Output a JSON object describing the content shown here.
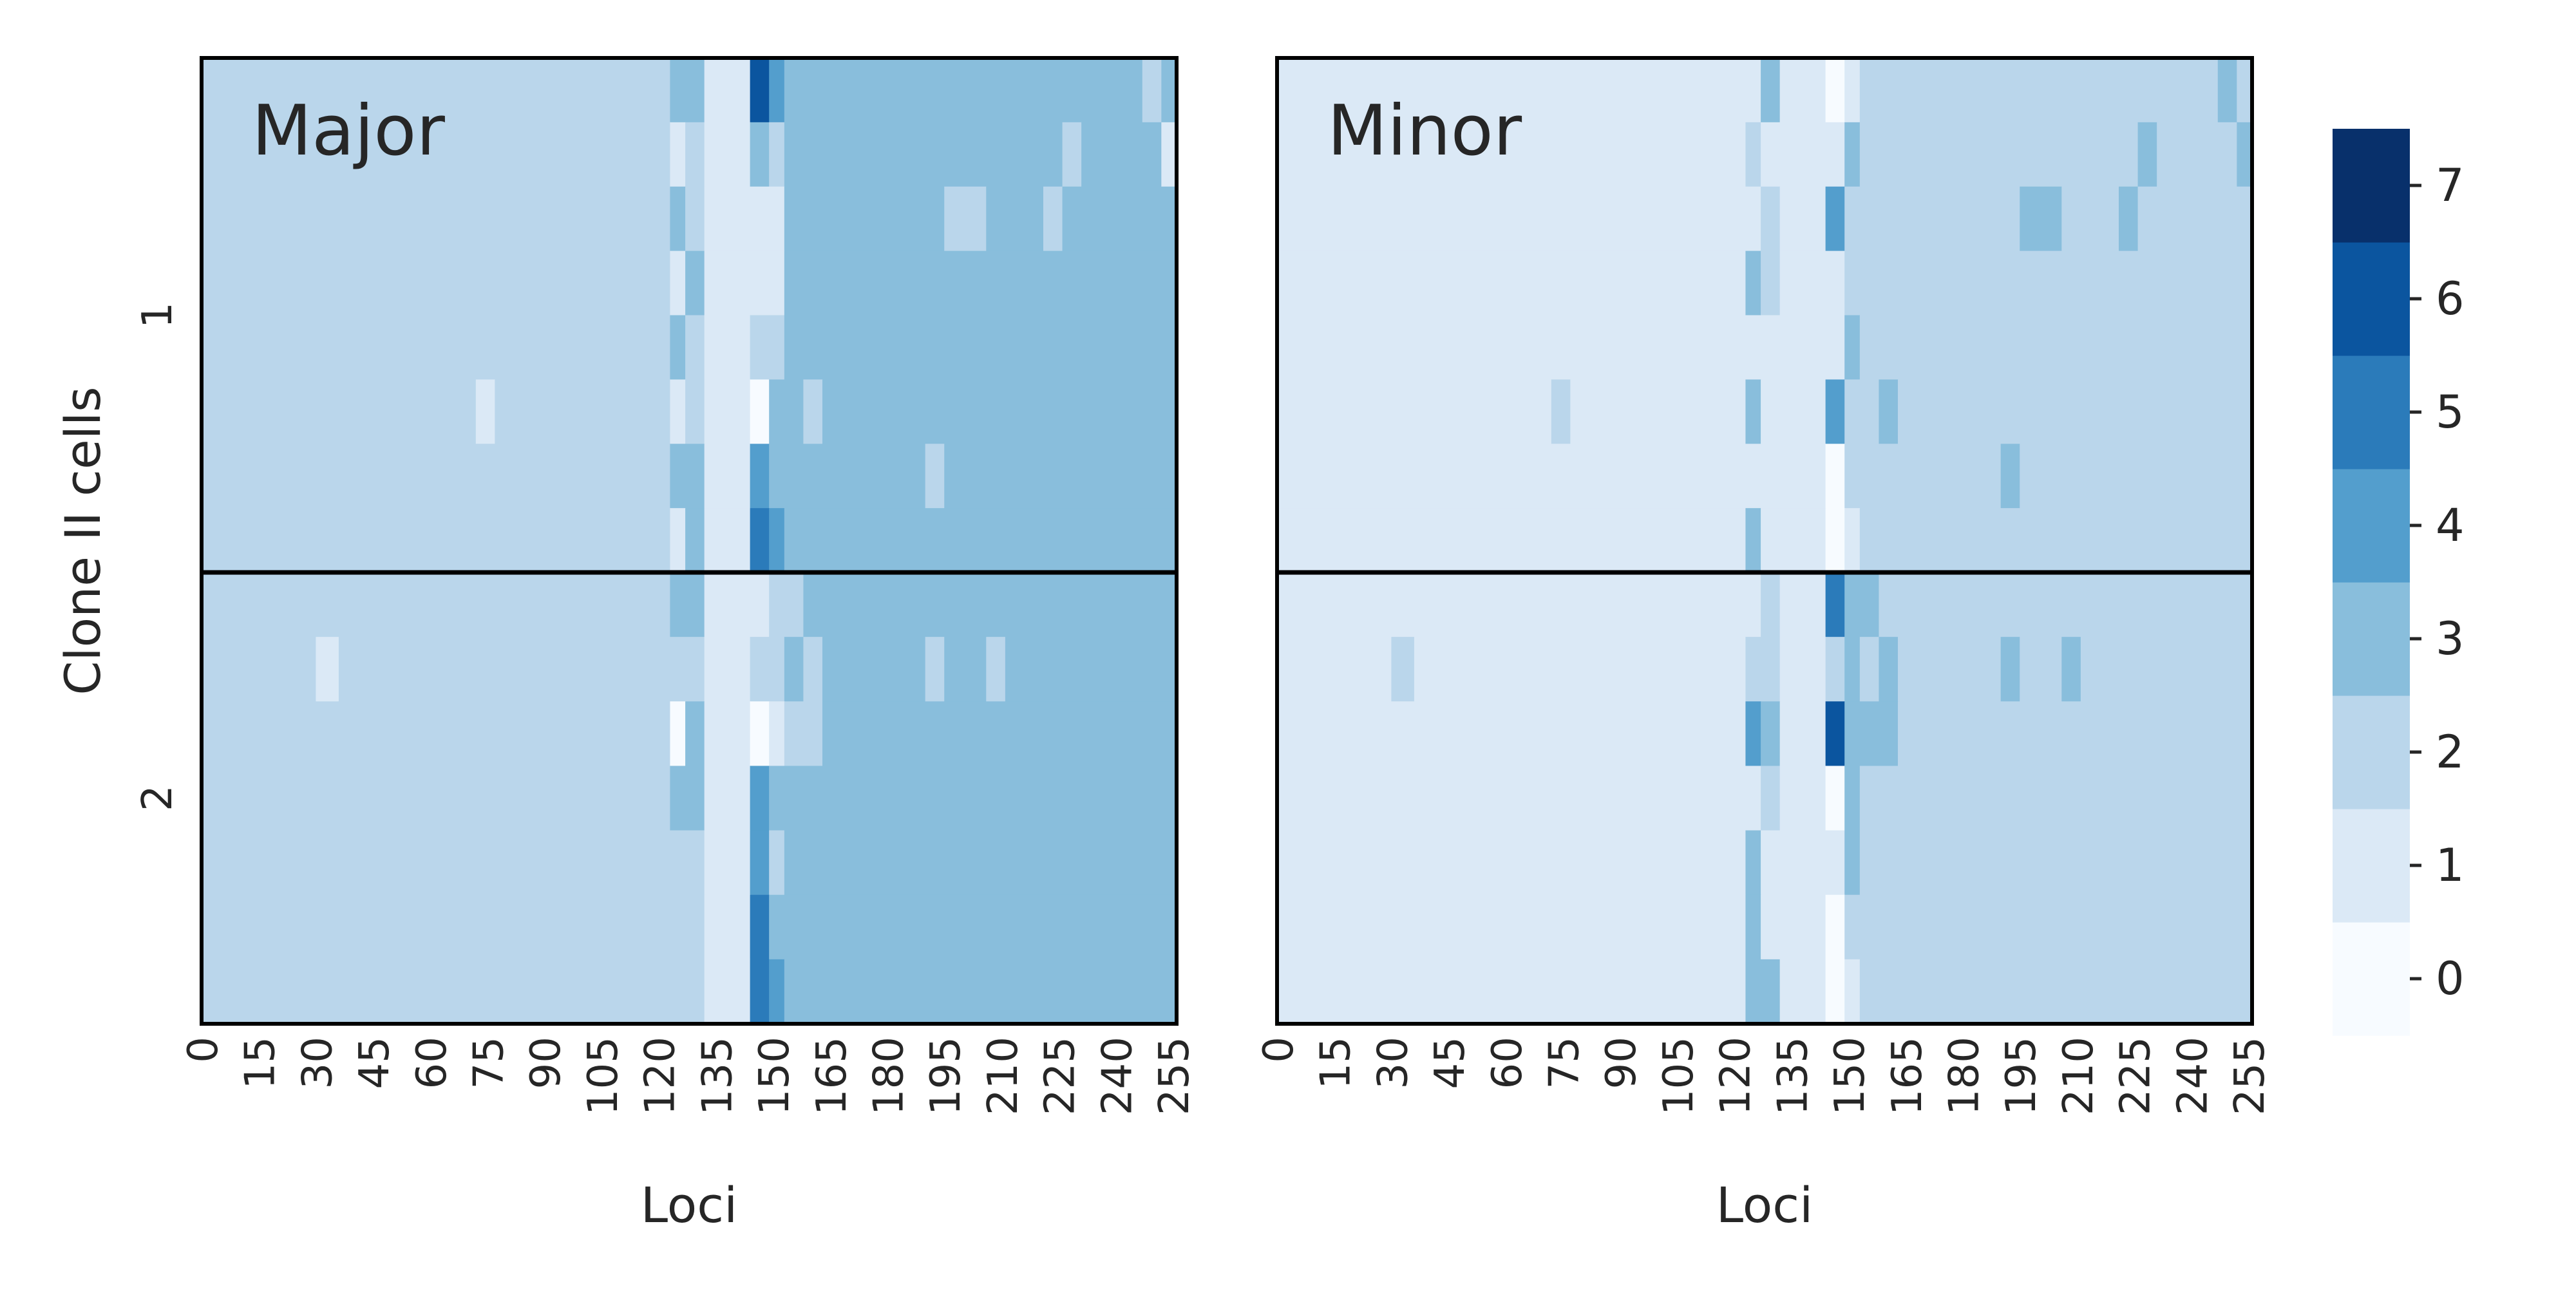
{
  "chart_data": {
    "type": "heatmap",
    "row_axis_label": "Clone II cells",
    "row_groups": [
      "1",
      "2"
    ],
    "rows_per_group": [
      8,
      7
    ],
    "x_axis_label": "Loci",
    "x_ticks": [
      "0",
      "15",
      "30",
      "45",
      "60",
      "75",
      "90",
      "105",
      "120",
      "135",
      "150",
      "165",
      "180",
      "195",
      "210",
      "225",
      "240",
      "255"
    ],
    "n_loci": 256,
    "colorbar": {
      "ticks": [
        "0",
        "1",
        "2",
        "3",
        "4",
        "5",
        "6",
        "7"
      ],
      "colors": [
        "#f7fbff",
        "#dbe9f6",
        "#bad6eb",
        "#89bedc",
        "#539ecd",
        "#2b7bba",
        "#0b559f",
        "#08306b"
      ]
    },
    "panels": [
      {
        "title": "Major",
        "default_value": 2,
        "segments": [
          {
            "loci": [
              123,
              126
            ],
            "values": [
              3,
              1,
              3,
              1,
              3,
              1,
              3,
              1,
              3,
              2,
              0,
              3,
              2,
              2,
              2
            ]
          },
          {
            "loci": [
              127,
              131
            ],
            "values": [
              3,
              2,
              2,
              3,
              2,
              2,
              3,
              3,
              3,
              2,
              3,
              3,
              2,
              2,
              2
            ]
          },
          {
            "loci": [
              132,
              143
            ],
            "values": [
              1,
              1,
              1,
              1,
              1,
              1,
              1,
              1,
              1,
              1,
              1,
              1,
              1,
              1,
              1
            ]
          },
          {
            "loci": [
              144,
              148
            ],
            "values": [
              6,
              3,
              1,
              1,
              2,
              0,
              4,
              5,
              1,
              2,
              0,
              4,
              4,
              5,
              5
            ]
          },
          {
            "loci": [
              149,
              152
            ],
            "values": [
              4,
              2,
              1,
              1,
              2,
              3,
              3,
              4,
              2,
              2,
              1,
              3,
              2,
              3,
              4
            ]
          },
          {
            "loci": [
              153,
              256
            ],
            "default": 3
          },
          {
            "loci": [
              153,
              157
            ],
            "values": [
              3,
              3,
              3,
              3,
              3,
              3,
              3,
              3,
              2,
              3,
              2,
              3,
              3,
              3,
              3
            ]
          },
          {
            "loci": [
              158,
              162
            ],
            "values": [
              3,
              3,
              3,
              3,
              3,
              2,
              3,
              3,
              3,
              2,
              2,
              3,
              3,
              3,
              3
            ]
          }
        ],
        "spots": [
          {
            "locus": [
              72,
              76
            ],
            "row": 5,
            "value": 1
          },
          {
            "locus": [
              30,
              35
            ],
            "row": 9,
            "value": 1
          },
          {
            "locus": [
              190,
              194
            ],
            "row": 6,
            "value": 2
          },
          {
            "locus": [
              190,
              194
            ],
            "row": 9,
            "value": 2
          },
          {
            "locus": [
              206,
              210
            ],
            "row": 9,
            "value": 2
          },
          {
            "locus": [
              195,
              205
            ],
            "row": 2,
            "value": 2
          },
          {
            "locus": [
              221,
              225
            ],
            "row": 2,
            "value": 2
          },
          {
            "locus": [
              226,
              230
            ],
            "row": 1,
            "value": 2
          },
          {
            "locus": [
              247,
              251
            ],
            "row": 0,
            "value": 2
          },
          {
            "locus": [
              252,
              255
            ],
            "row": 1,
            "value": 1
          }
        ]
      },
      {
        "title": "Minor",
        "default_value": 1,
        "segments": [
          {
            "loci": [
              123,
              126
            ],
            "values": [
              1,
              2,
              1,
              3,
              1,
              3,
              1,
              3,
              1,
              2,
              4,
              1,
              3,
              3,
              3
            ]
          },
          {
            "loci": [
              127,
              131
            ],
            "values": [
              3,
              1,
              2,
              2,
              1,
              1,
              1,
              1,
              2,
              2,
              3,
              2,
              1,
              1,
              3
            ]
          },
          {
            "loci": [
              132,
              143
            ],
            "values": [
              1,
              1,
              1,
              1,
              1,
              1,
              1,
              1,
              1,
              1,
              1,
              1,
              1,
              1,
              1
            ]
          },
          {
            "loci": [
              144,
              148
            ],
            "values": [
              0,
              1,
              4,
              1,
              1,
              4,
              0,
              0,
              5,
              2,
              6,
              0,
              1,
              0,
              0
            ]
          },
          {
            "loci": [
              149,
              152
            ],
            "values": [
              1,
              3,
              2,
              2,
              3,
              2,
              2,
              1,
              3,
              3,
              3,
              3,
              3,
              2,
              1
            ]
          },
          {
            "loci": [
              153,
              256
            ],
            "default": 2
          },
          {
            "loci": [
              153,
              157
            ],
            "values": [
              2,
              2,
              2,
              2,
              2,
              2,
              2,
              2,
              3,
              2,
              3,
              2,
              2,
              2,
              2
            ]
          },
          {
            "loci": [
              158,
              162
            ],
            "values": [
              2,
              2,
              2,
              2,
              2,
              3,
              2,
              2,
              2,
              3,
              3,
              2,
              2,
              2,
              2
            ]
          }
        ],
        "spots": [
          {
            "locus": [
              72,
              76
            ],
            "row": 5,
            "value": 2
          },
          {
            "locus": [
              30,
              35
            ],
            "row": 9,
            "value": 2
          },
          {
            "locus": [
              190,
              194
            ],
            "row": 6,
            "value": 3
          },
          {
            "locus": [
              190,
              194
            ],
            "row": 9,
            "value": 3
          },
          {
            "locus": [
              206,
              210
            ],
            "row": 9,
            "value": 3
          },
          {
            "locus": [
              195,
              205
            ],
            "row": 2,
            "value": 3
          },
          {
            "locus": [
              221,
              225
            ],
            "row": 2,
            "value": 3
          },
          {
            "locus": [
              226,
              230
            ],
            "row": 1,
            "value": 3
          },
          {
            "locus": [
              247,
              251
            ],
            "row": 0,
            "value": 3
          },
          {
            "locus": [
              252,
              255
            ],
            "row": 1,
            "value": 3
          }
        ]
      }
    ]
  }
}
